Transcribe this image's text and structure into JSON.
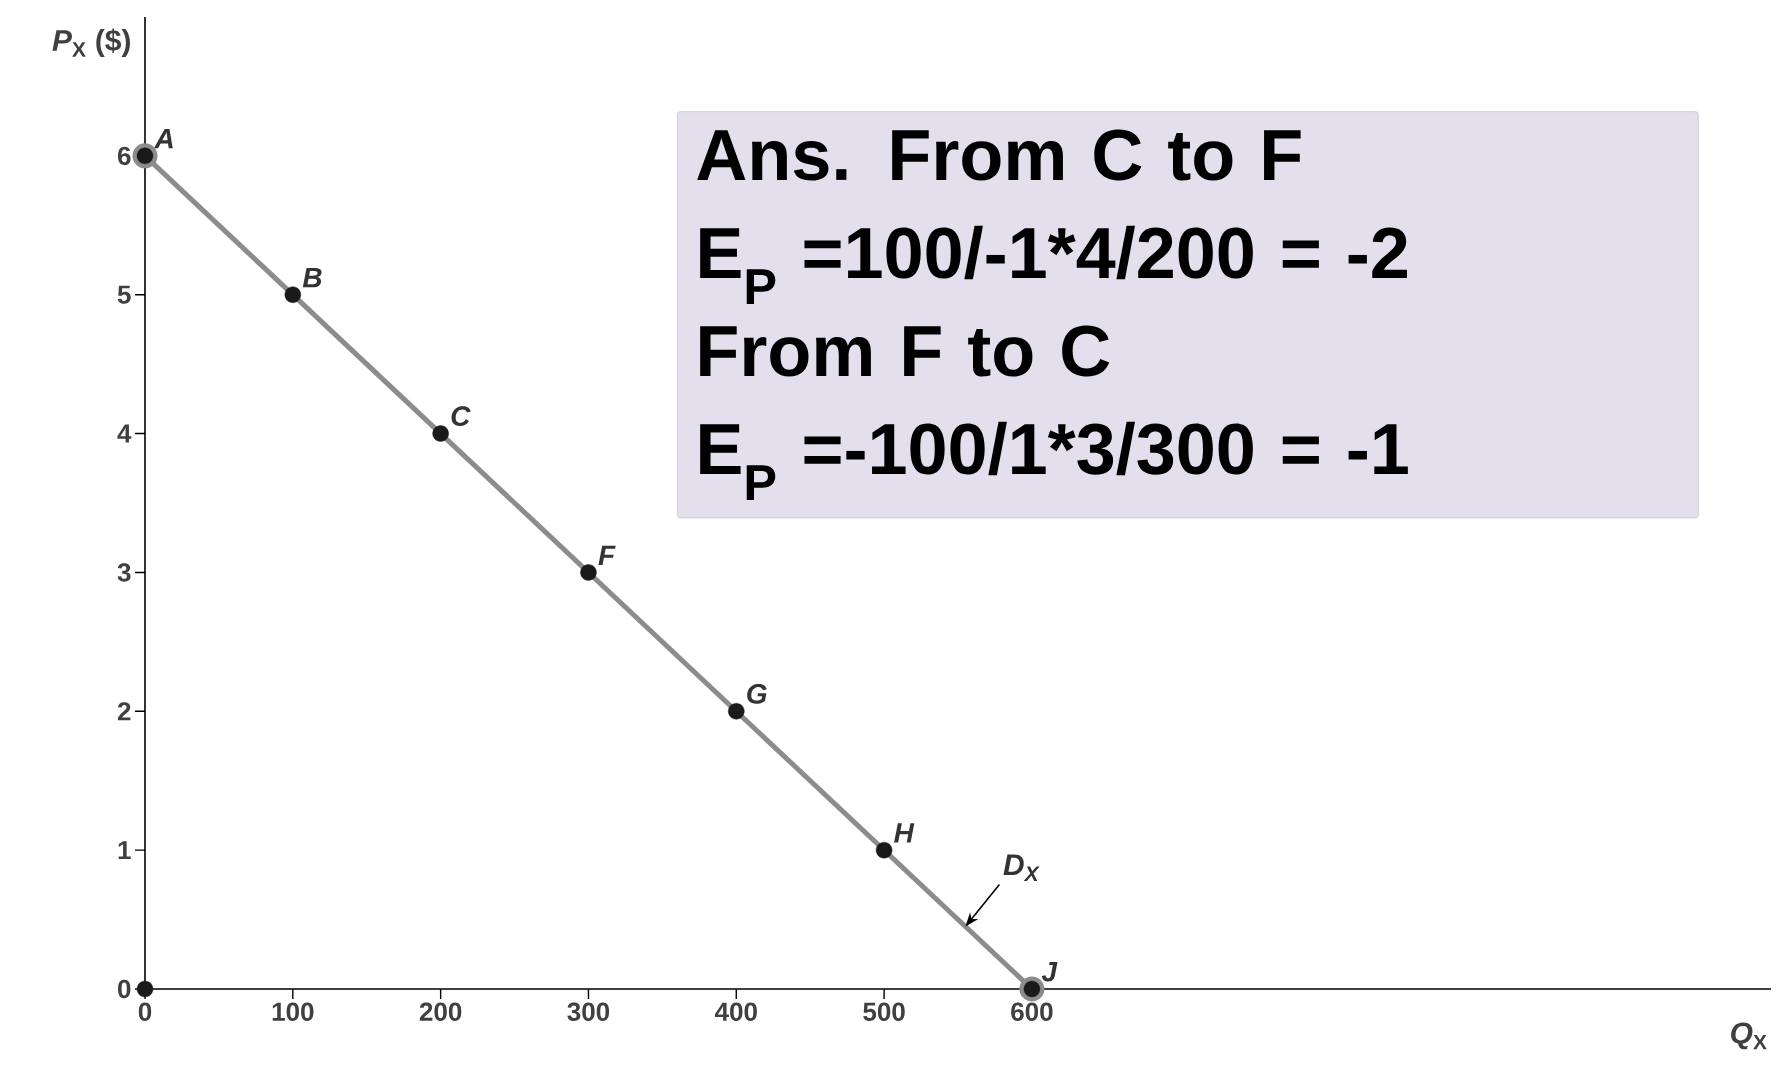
{
  "chart_data": {
    "type": "line",
    "xlabel": "*Q*$_{X}$",
    "ylabel": "*P*$_{X}$ ($)",
    "xlim": [
      0,
      1100
    ],
    "ylim": [
      0,
      7
    ],
    "xticks": [
      0,
      100,
      200,
      300,
      400,
      500,
      600
    ],
    "yticks": [
      0,
      1,
      2,
      3,
      4,
      5,
      6
    ],
    "grid": false,
    "marker": "circle",
    "series": [
      {
        "color": "#8c8c8c",
        "x": [
          0,
          600
        ],
        "values": [
          6,
          0
        ]
      },
      {
        "type": "scatter",
        "color": "#1a1a1a",
        "x": [
          0,
          100,
          200,
          300,
          400,
          500,
          600,
          0
        ],
        "values": [
          6,
          5,
          4,
          3,
          2,
          1,
          0,
          0
        ]
      }
    ],
    "annotations": [
      "Ans. From C to F",
      "E$_{P}$ =100/-1*4/200 = -2",
      "From F to C",
      "E$_{P}$ =-100/1*3/300 = -1",
      {
        "text": "A",
        "x": 0,
        "y": 6
      },
      {
        "text": "B",
        "x": 100,
        "y": 5
      },
      {
        "text": "C",
        "x": 200,
        "y": 4
      },
      {
        "text": "F",
        "x": 300,
        "y": 3
      },
      {
        "text": "G",
        "x": 400,
        "y": 2
      },
      {
        "text": "H",
        "x": 500,
        "y": 1
      },
      {
        "text": "J",
        "x": 600,
        "y": 0
      },
      {
        "text": "D$_{X}$",
        "x": 555,
        "y": 0.45
      }
    ]
  }
}
